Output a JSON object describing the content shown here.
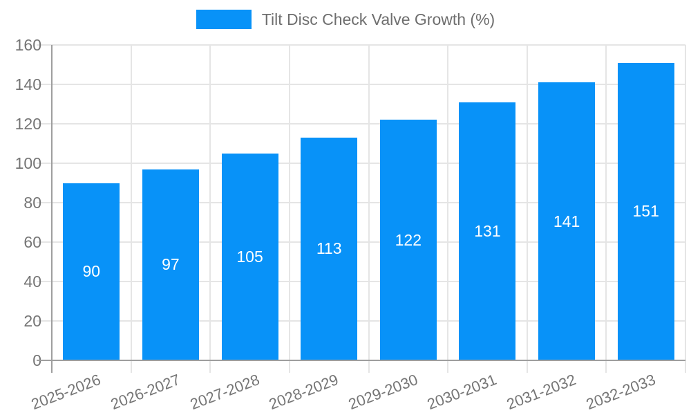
{
  "legend": {
    "label": "Tilt Disc Check Valve Growth (%)"
  },
  "colors": {
    "bar": "#0892f8",
    "grid": "#e5e5e5",
    "axis": "#9e9e9e",
    "tick_label": "#757575",
    "legend_text": "#6e6e6e",
    "bar_label": "#ffffff",
    "background": "#ffffff"
  },
  "chart_data": {
    "type": "bar",
    "title": "Tilt Disc Check Valve Growth (%)",
    "categories": [
      "2025-2026",
      "2026-2027",
      "2027-2028",
      "2028-2029",
      "2029-2030",
      "2030-2031",
      "2031-2032",
      "2032-2033"
    ],
    "values": [
      90,
      97,
      105,
      113,
      122,
      131,
      141,
      151
    ],
    "xlabel": "",
    "ylabel": "",
    "ylim": [
      0,
      160
    ],
    "ytick_step": 20,
    "grid": true,
    "legend_position": "top",
    "bar_labels_position": "inside-center",
    "xlabel_rotation_deg": -21
  }
}
